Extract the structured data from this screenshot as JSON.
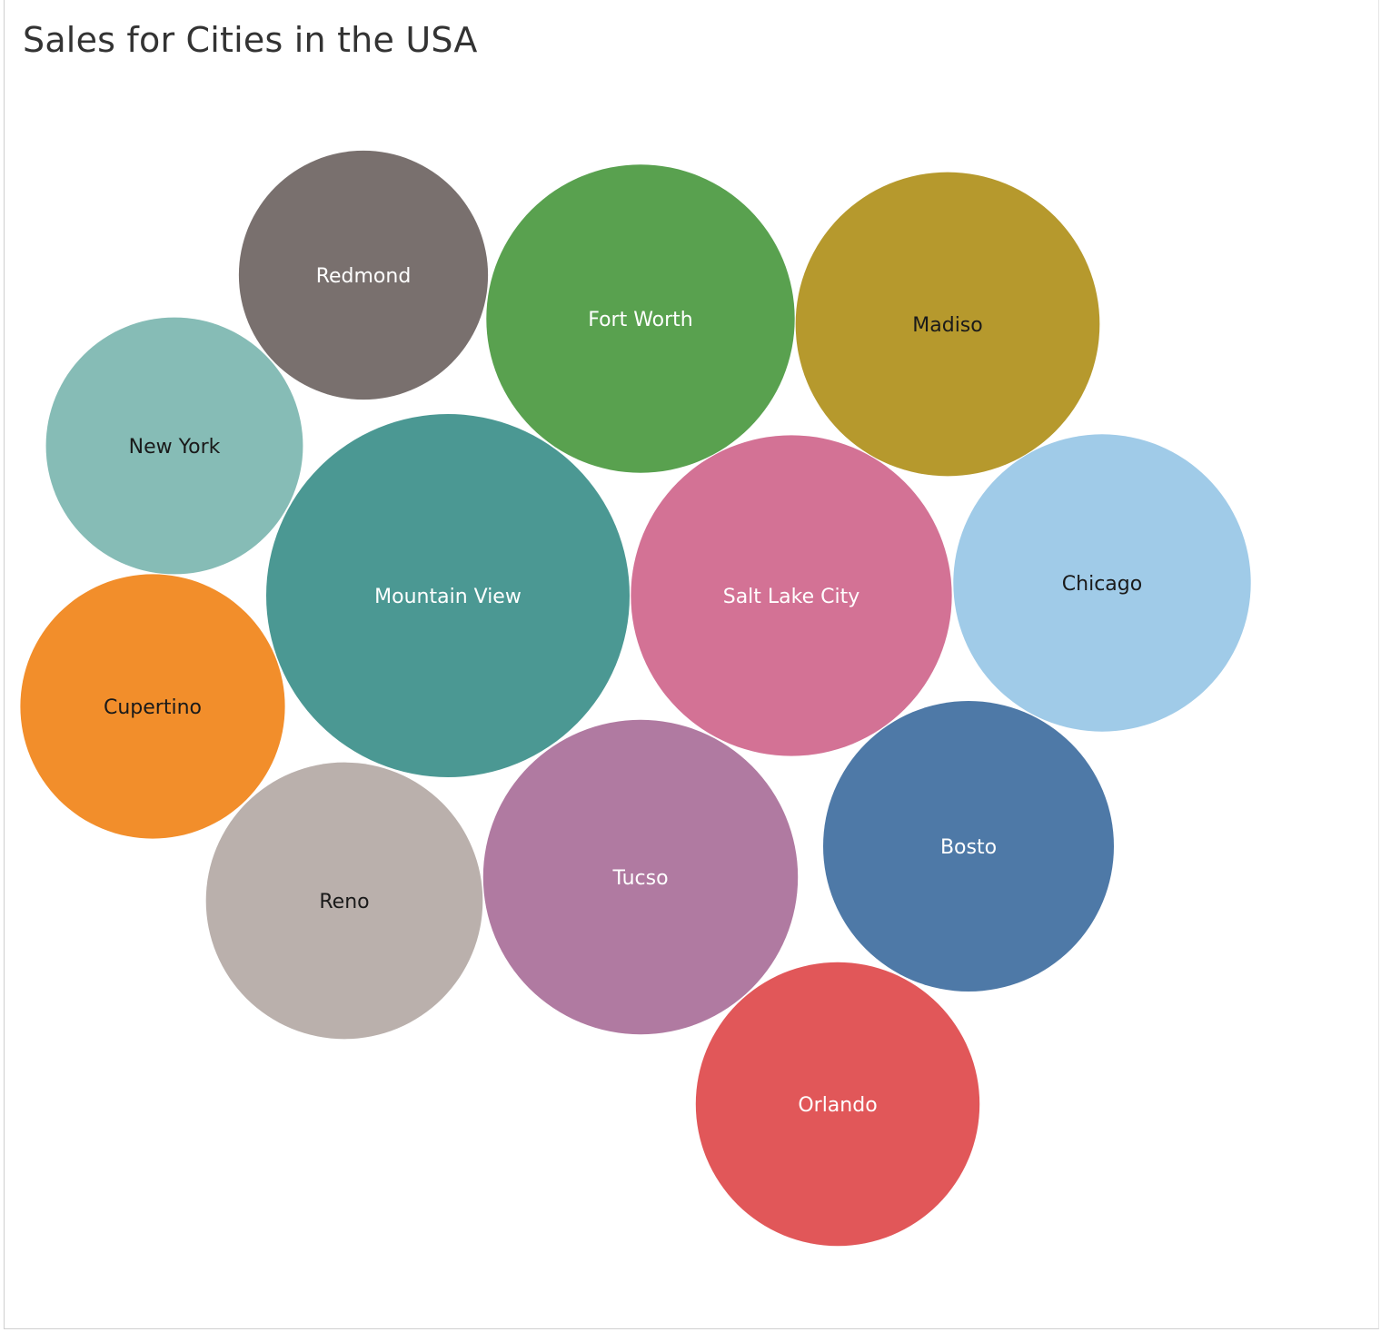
{
  "chart_data": {
    "type": "bubble",
    "title": "Sales for Cities in the USA",
    "series": [
      {
        "name": "Mountain View",
        "value": 100,
        "color": "#4b9893",
        "label_color": "#ffffff"
      },
      {
        "name": "Salt Lake City",
        "value": 78,
        "color": "#d37295",
        "label_color": "#ffffff"
      },
      {
        "name": "Tucso",
        "value": 75,
        "color": "#b07aa1",
        "label_color": "#ffffff"
      },
      {
        "name": "Fort Worth",
        "value": 72,
        "color": "#59a14f",
        "label_color": "#ffffff"
      },
      {
        "name": "Madiso",
        "value": 70,
        "color": "#b6992d",
        "label_color": "#1a1a1a"
      },
      {
        "name": "Chicago",
        "value": 67,
        "color": "#a0cbe8",
        "label_color": "#1a1a1a"
      },
      {
        "name": "Bosto",
        "value": 64,
        "color": "#4e79a7",
        "label_color": "#ffffff"
      },
      {
        "name": "Orlando",
        "value": 61,
        "color": "#e15759",
        "label_color": "#ffffff"
      },
      {
        "name": "Reno",
        "value": 58,
        "color": "#bab0ac",
        "label_color": "#1a1a1a"
      },
      {
        "name": "New York",
        "value": 50,
        "color": "#86bcb6",
        "label_color": "#1a1a1a"
      },
      {
        "name": "Cupertino",
        "value": 53,
        "color": "#f28e2b",
        "label_color": "#1a1a1a"
      },
      {
        "name": "Redmond",
        "value": 47,
        "color": "#79706e",
        "label_color": "#ffffff"
      }
    ]
  }
}
